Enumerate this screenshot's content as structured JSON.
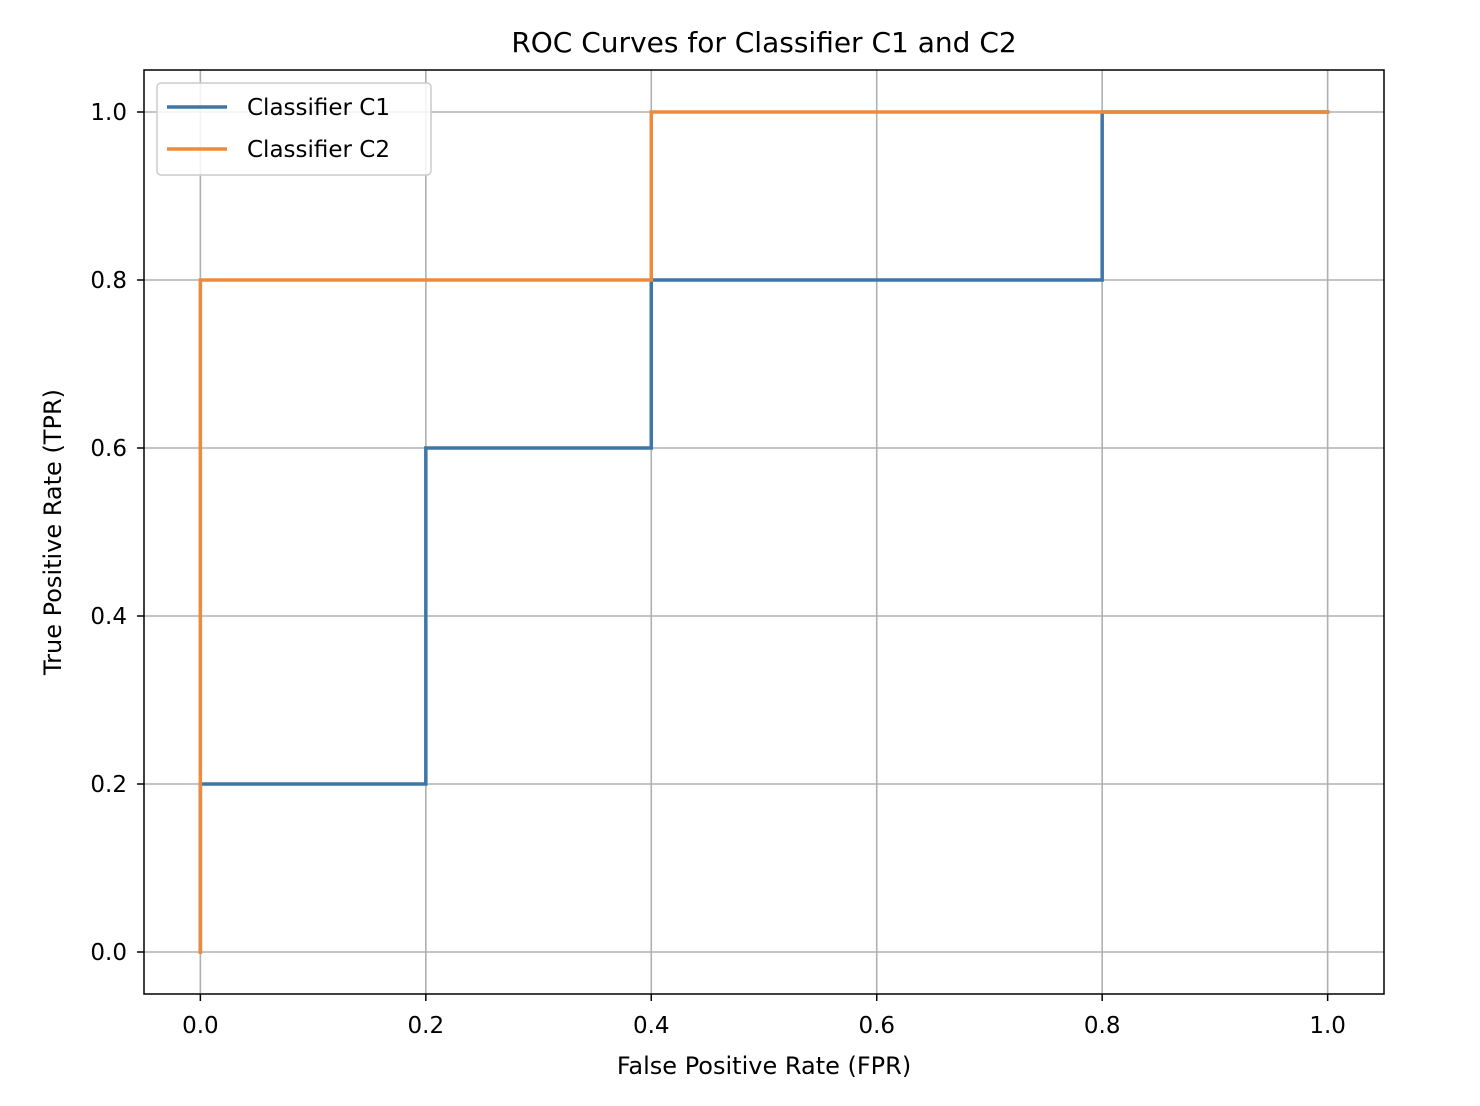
{
  "chart_data": {
    "type": "line",
    "title": "ROC Curves for Classifier C1 and C2",
    "xlabel": "False Positive Rate (FPR)",
    "ylabel": "True Positive Rate (TPR)",
    "xlim": [
      -0.05,
      1.05
    ],
    "ylim": [
      -0.05,
      1.05
    ],
    "xticks": [
      0.0,
      0.2,
      0.4,
      0.6,
      0.8,
      1.0
    ],
    "yticks": [
      0.0,
      0.2,
      0.4,
      0.6,
      0.8,
      1.0
    ],
    "xtick_labels": [
      "0.0",
      "0.2",
      "0.4",
      "0.6",
      "0.8",
      "1.0"
    ],
    "ytick_labels": [
      "0.0",
      "0.2",
      "0.4",
      "0.6",
      "0.8",
      "1.0"
    ],
    "grid": true,
    "legend_position": "upper left",
    "series": [
      {
        "name": "Classifier C1",
        "color": "#3d76a8",
        "x": [
          0.0,
          0.0,
          0.2,
          0.2,
          0.4,
          0.4,
          0.8,
          0.8,
          1.0
        ],
        "y": [
          0.0,
          0.2,
          0.2,
          0.6,
          0.6,
          0.8,
          0.8,
          1.0,
          1.0
        ]
      },
      {
        "name": "Classifier C2",
        "color": "#ee8a3b",
        "x": [
          0.0,
          0.0,
          0.4,
          0.4,
          1.0
        ],
        "y": [
          0.0,
          0.8,
          0.8,
          1.0,
          1.0
        ]
      }
    ]
  }
}
